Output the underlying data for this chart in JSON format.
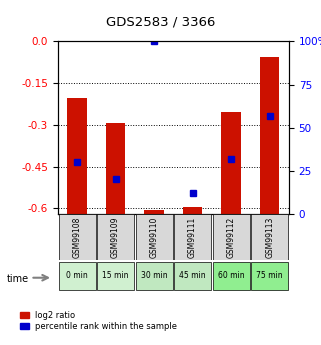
{
  "title": "GDS2583 / 3366",
  "samples": [
    "GSM99108",
    "GSM99109",
    "GSM99110",
    "GSM99111",
    "GSM99112",
    "GSM99113"
  ],
  "time_labels": [
    "0 min",
    "15 min",
    "30 min",
    "45 min",
    "60 min",
    "75 min"
  ],
  "log2_ratio": [
    -0.205,
    -0.295,
    -0.605,
    -0.595,
    -0.255,
    -0.055
  ],
  "percentile_rank": [
    30,
    20,
    100,
    12,
    32,
    57
  ],
  "ylim_left": [
    -0.62,
    0.0
  ],
  "ylim_right": [
    0,
    100
  ],
  "yticks_left": [
    0.0,
    -0.15,
    -0.3,
    -0.45,
    -0.6
  ],
  "yticks_right": [
    0,
    25,
    50,
    75,
    100
  ],
  "bar_color": "#cc1100",
  "dot_color": "#0000cc",
  "grid_color": "#000000",
  "label_bg_colors": [
    "#e8e8e8",
    "#e8e8e8",
    "#e8e8e8",
    "#e8e8e8",
    "#e8e8e8",
    "#e8e8e8"
  ],
  "time_bg_colors": [
    "#d4f0d4",
    "#d4f0d4",
    "#d4f0d4",
    "#d4f0d4",
    "#90ee90",
    "#90ee90"
  ],
  "legend_red": "log2 ratio",
  "legend_blue": "percentile rank within the sample",
  "bar_width": 0.5
}
